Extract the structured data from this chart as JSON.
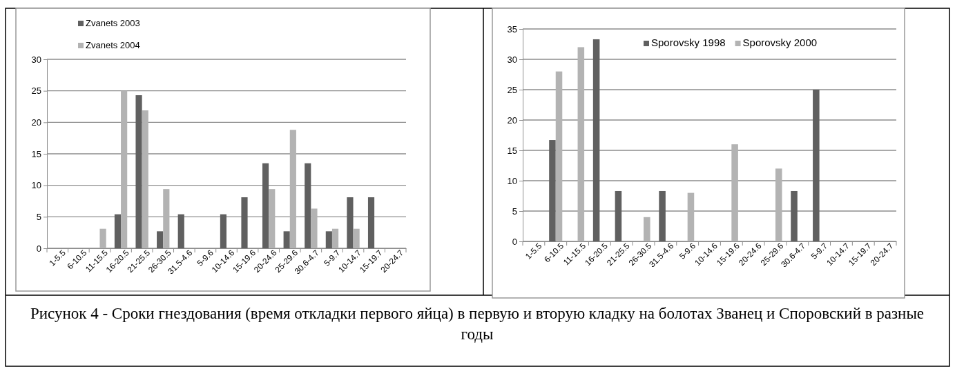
{
  "chart_data": [
    {
      "type": "bar",
      "categories": [
        "1-5.5",
        "6-10.5",
        "11-15.5",
        "16-20.5",
        "21-25.5",
        "26-30.5",
        "31.5-4.6",
        "5-9.6",
        "10-14.6",
        "15-19.6",
        "20-24.6",
        "25-29.6",
        "30.6-4.7",
        "5-9.7",
        "10-14.7",
        "15-19.7",
        "20-24.7"
      ],
      "series": [
        {
          "name": "Zvanets 2003",
          "color": "#606060",
          "values": [
            null,
            null,
            null,
            5.4,
            24.3,
            2.7,
            5.4,
            null,
            5.4,
            8.1,
            13.5,
            2.7,
            13.5,
            2.7,
            8.1,
            8.1,
            null
          ]
        },
        {
          "name": "Zvanets 2004",
          "color": "#b3b3b3",
          "values": [
            null,
            null,
            3.1,
            25,
            21.9,
            9.4,
            null,
            null,
            null,
            null,
            9.4,
            18.8,
            6.3,
            3.1,
            3.1,
            null,
            null
          ]
        }
      ],
      "ylim": [
        0,
        30
      ],
      "yticks": [
        0,
        5,
        10,
        15,
        20,
        25,
        30
      ],
      "grid": "y",
      "legend": "top left"
    },
    {
      "type": "bar",
      "categories": [
        "1-5.5",
        "6-10.5",
        "11-15.5",
        "16-20.5",
        "21-25.5",
        "26-30.5",
        "31.5-4.6",
        "5-9.6",
        "10-14.6",
        "15-19.6",
        "20-24.6",
        "25-29.6",
        "30.6-4.7",
        "5-9.7",
        "10-14.7",
        "15-19.7",
        "20-24.7"
      ],
      "series": [
        {
          "name": "Sporovsky 1998",
          "color": "#606060",
          "values": [
            null,
            16.7,
            null,
            33.3,
            8.3,
            null,
            8.3,
            null,
            null,
            null,
            null,
            null,
            8.3,
            25,
            null,
            null,
            null
          ]
        },
        {
          "name": "Sporovsky 2000",
          "color": "#b3b3b3",
          "values": [
            null,
            28,
            32,
            null,
            null,
            4,
            null,
            8,
            null,
            16,
            null,
            12,
            null,
            null,
            null,
            null,
            null
          ]
        }
      ],
      "ylim": [
        0,
        35
      ],
      "yticks": [
        0,
        5,
        10,
        15,
        20,
        25,
        30,
        35
      ],
      "grid": "y",
      "legend": "top right"
    },
    {
      "type": "other",
      "title": "Рисунок 4 - Сроки гнездования (время откладки первого яйца) в первую и вторую кладку на болотах Званец и Споровский в разные годы"
    }
  ]
}
